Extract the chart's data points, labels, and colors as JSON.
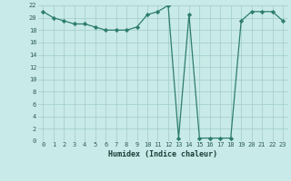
{
  "xlabel": "Humidex (Indice chaleur)",
  "x_values": [
    0,
    1,
    2,
    3,
    4,
    5,
    6,
    7,
    8,
    9,
    10,
    11,
    12,
    13,
    14,
    15,
    16,
    17,
    18,
    19,
    20,
    21,
    22,
    23
  ],
  "y_values": [
    21,
    20,
    19.5,
    19,
    19,
    18.5,
    18,
    18,
    18,
    18.5,
    20.5,
    21,
    22,
    0.5,
    20.5,
    0.5,
    0.5,
    0.5,
    0.5,
    19.5,
    21,
    21,
    21,
    19.5
  ],
  "line_color": "#2e7d6e",
  "bg_color": "#c8eae8",
  "grid_color": "#a0ccc8",
  "ylim": [
    0,
    22
  ],
  "xlim": [
    -0.5,
    23.5
  ],
  "xtick_labels": [
    "0",
    "1",
    "2",
    "3",
    "4",
    "5",
    "6",
    "7",
    "8",
    "9",
    "10",
    "11",
    "12",
    "13",
    "14",
    "15",
    "16",
    "17",
    "18",
    "19",
    "20",
    "21",
    "22",
    "23"
  ],
  "yticks": [
    0,
    2,
    4,
    6,
    8,
    10,
    12,
    14,
    16,
    18,
    20,
    22
  ]
}
